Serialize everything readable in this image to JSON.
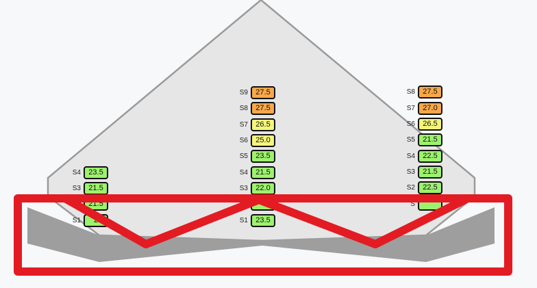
{
  "colors": {
    "green": "#9cf26d",
    "yellow": "#f5f57a",
    "orange": "#f8a849",
    "silo_fill": "#e6e6e6",
    "silo_stroke": "#9a9a9a",
    "floor": "#9e9e9e",
    "annotation": "#e31b23"
  },
  "columns": [
    {
      "id": "left",
      "sensors": [
        {
          "name": "S4",
          "value": "23.5",
          "level": "green"
        },
        {
          "name": "S3",
          "value": "21.5",
          "level": "green"
        },
        {
          "name": "",
          "value": "21.5",
          "level": "green"
        },
        {
          "name": "S1",
          "value": "2",
          "level": "green"
        }
      ]
    },
    {
      "id": "center",
      "sensors": [
        {
          "name": "S9",
          "value": "27.5",
          "level": "orange"
        },
        {
          "name": "S8",
          "value": "27.5",
          "level": "orange"
        },
        {
          "name": "S7",
          "value": "26.5",
          "level": "yellow"
        },
        {
          "name": "S6",
          "value": "25.0",
          "level": "yellow"
        },
        {
          "name": "S5",
          "value": "23.5",
          "level": "green"
        },
        {
          "name": "S4",
          "value": "21.5",
          "level": "green"
        },
        {
          "name": "S3",
          "value": "22.0",
          "level": "green"
        },
        {
          "name": "S2",
          "value": "",
          "level": "green"
        },
        {
          "name": "S1",
          "value": "23.5",
          "level": "green"
        }
      ]
    },
    {
      "id": "right",
      "sensors": [
        {
          "name": "S8",
          "value": "27.5",
          "level": "orange"
        },
        {
          "name": "S7",
          "value": "27.0",
          "level": "orange"
        },
        {
          "name": "S6",
          "value": "26.5",
          "level": "yellow"
        },
        {
          "name": "S5",
          "value": "21.5",
          "level": "green"
        },
        {
          "name": "S4",
          "value": "22.5",
          "level": "green"
        },
        {
          "name": "S3",
          "value": "21.5",
          "level": "green"
        },
        {
          "name": "S2",
          "value": "22.5",
          "level": "green"
        },
        {
          "name": "S",
          "value": "",
          "level": "green"
        }
      ]
    }
  ]
}
